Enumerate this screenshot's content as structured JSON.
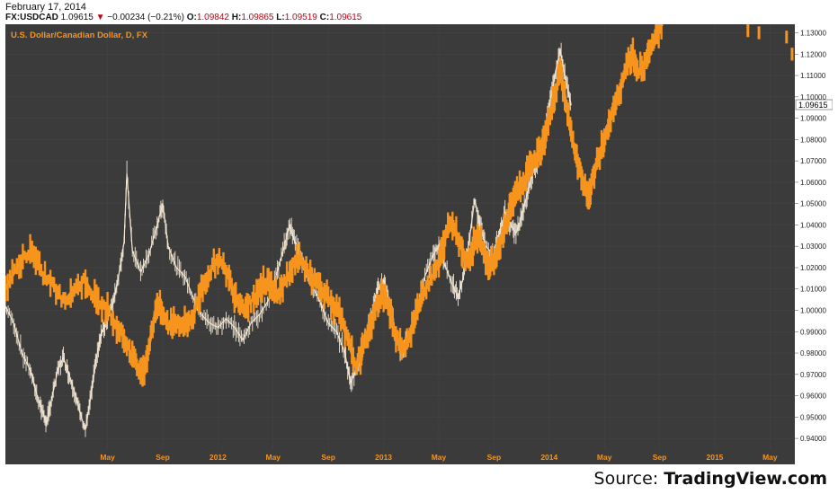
{
  "header": {
    "date": "February 17, 2014",
    "symbol": "FX:USDCAD",
    "last": "1.09615",
    "change": "−0.00234 (−0.21%)",
    "open_label": "O:",
    "open": "1.09842",
    "high_label": "H:",
    "high": "1.09865",
    "low_label": "L:",
    "low": "1.09519",
    "close_label": "C:",
    "close": "1.09615"
  },
  "source": {
    "prefix": "Source: ",
    "name": "TradingView.com"
  },
  "colors": {
    "background": "#3b3b3b",
    "primary": "#f7941d",
    "overlay": "#f3e6d2",
    "price_tag": "#ffffff"
  },
  "chart_data": {
    "type": "line",
    "title": "U.S. Dollar/Canadian Dollar, D, FX",
    "ylim": [
      0.935,
      1.134
    ],
    "y_ticks": [
      0.94,
      0.95,
      0.96,
      0.97,
      0.98,
      0.99,
      1.0,
      1.01,
      1.02,
      1.03,
      1.04,
      1.05,
      1.06,
      1.07,
      1.08,
      1.09,
      1.1,
      1.11,
      1.12,
      1.13
    ],
    "y_tick_labels": [
      "0.94000",
      "0.95000",
      "0.96000",
      "0.97000",
      "0.98000",
      "0.99000",
      "1.00000",
      "1.01000",
      "1.02000",
      "1.03000",
      "1.04000",
      "1.05000",
      "1.06000",
      "1.07000",
      "1.08000",
      "1.09000",
      "1.10000",
      "1.11000",
      "1.12000",
      "1.13000"
    ],
    "current_price": 1.09615,
    "current_price_label": "1.09615",
    "x_ticks": [
      {
        "label": "May",
        "x": 1.0
      },
      {
        "label": "Sep",
        "x": 2.0
      },
      {
        "label": "2012",
        "x": 3.0
      },
      {
        "label": "May",
        "x": 4.0
      },
      {
        "label": "Sep",
        "x": 5.0
      },
      {
        "label": "2013",
        "x": 6.0
      },
      {
        "label": "May",
        "x": 7.0
      },
      {
        "label": "Sep",
        "x": 8.0
      },
      {
        "label": "2014",
        "x": 9.0
      },
      {
        "label": "May",
        "x": 10.0
      },
      {
        "label": "Sep",
        "x": 11.0
      },
      {
        "label": "2015",
        "x": 12.0
      },
      {
        "label": "May",
        "x": 13.0
      }
    ],
    "xlim": [
      -0.85,
      13.45
    ],
    "series": [
      {
        "values": [
          [
            -0.85,
            1.01
          ],
          [
            -0.6,
            1.022
          ],
          [
            -0.4,
            1.028
          ],
          [
            -0.2,
            1.018
          ],
          [
            0.0,
            1.012
          ],
          [
            0.2,
            1.004
          ],
          [
            0.4,
            1.01
          ],
          [
            0.6,
            1.014
          ],
          [
            0.8,
            1.004
          ],
          [
            1.0,
            1.0
          ],
          [
            1.2,
            0.992
          ],
          [
            1.35,
            0.984
          ],
          [
            1.5,
            0.976
          ],
          [
            1.6,
            0.97
          ],
          [
            1.7,
            0.976
          ],
          [
            1.8,
            0.99
          ],
          [
            1.9,
            1.004
          ],
          [
            2.0,
            0.998
          ],
          [
            2.1,
            0.993
          ],
          [
            2.25,
            0.995
          ],
          [
            2.4,
            0.993
          ],
          [
            2.55,
            0.997
          ],
          [
            2.7,
            1.01
          ],
          [
            2.85,
            1.018
          ],
          [
            3.0,
            1.024
          ],
          [
            3.15,
            1.018
          ],
          [
            3.3,
            1.008
          ],
          [
            3.45,
            1.002
          ],
          [
            3.6,
            1.004
          ],
          [
            3.75,
            1.01
          ],
          [
            3.9,
            1.014
          ],
          [
            4.0,
            1.008
          ],
          [
            4.15,
            1.01
          ],
          [
            4.3,
            1.018
          ],
          [
            4.45,
            1.024
          ],
          [
            4.6,
            1.02
          ],
          [
            4.75,
            1.014
          ],
          [
            4.9,
            1.01
          ],
          [
            5.05,
            1.004
          ],
          [
            5.2,
            0.998
          ],
          [
            5.35,
            0.986
          ],
          [
            5.5,
            0.974
          ],
          [
            5.6,
            0.98
          ],
          [
            5.7,
            0.988
          ],
          [
            5.8,
            0.996
          ],
          [
            5.9,
            1.004
          ],
          [
            6.0,
            1.008
          ],
          [
            6.1,
            1.0
          ],
          [
            6.2,
            0.99
          ],
          [
            6.35,
            0.982
          ],
          [
            6.5,
            0.99
          ],
          [
            6.6,
            1.0
          ],
          [
            6.7,
            1.008
          ],
          [
            6.85,
            1.014
          ],
          [
            7.0,
            1.022
          ],
          [
            7.1,
            1.032
          ],
          [
            7.2,
            1.042
          ],
          [
            7.3,
            1.038
          ],
          [
            7.4,
            1.03
          ],
          [
            7.5,
            1.022
          ],
          [
            7.6,
            1.028
          ],
          [
            7.7,
            1.036
          ],
          [
            7.8,
            1.03
          ],
          [
            7.9,
            1.02
          ],
          [
            8.0,
            1.024
          ],
          [
            8.1,
            1.03
          ],
          [
            8.2,
            1.038
          ],
          [
            8.3,
            1.048
          ],
          [
            8.4,
            1.056
          ],
          [
            8.5,
            1.058
          ],
          [
            8.6,
            1.064
          ],
          [
            8.7,
            1.07
          ],
          [
            8.8,
            1.072
          ],
          [
            8.9,
            1.08
          ],
          [
            9.0,
            1.09
          ],
          [
            9.1,
            1.1
          ],
          [
            9.2,
            1.112
          ],
          [
            9.3,
            1.098
          ],
          [
            9.4,
            1.082
          ],
          [
            9.5,
            1.07
          ],
          [
            9.6,
            1.062
          ],
          [
            9.7,
            1.052
          ],
          [
            9.8,
            1.062
          ],
          [
            9.9,
            1.072
          ],
          [
            10.0,
            1.08
          ],
          [
            10.1,
            1.088
          ],
          [
            10.2,
            1.096
          ],
          [
            10.3,
            1.104
          ],
          [
            10.4,
            1.114
          ],
          [
            10.5,
            1.12
          ],
          [
            10.6,
            1.112
          ],
          [
            10.75,
            1.116
          ],
          [
            10.85,
            1.124
          ],
          [
            10.95,
            1.13
          ],
          [
            11.05,
            1.134
          ]
        ]
      },
      {
        "values": [
          [
            -0.85,
            1.002
          ],
          [
            -0.7,
            0.994
          ],
          [
            -0.55,
            0.98
          ],
          [
            -0.4,
            0.972
          ],
          [
            -0.3,
            0.962
          ],
          [
            -0.2,
            0.954
          ],
          [
            -0.1,
            0.947
          ],
          [
            0.0,
            0.96
          ],
          [
            0.1,
            0.972
          ],
          [
            0.2,
            0.978
          ],
          [
            0.3,
            0.97
          ],
          [
            0.4,
            0.962
          ],
          [
            0.5,
            0.952
          ],
          [
            0.6,
            0.944
          ],
          [
            0.7,
            0.96
          ],
          [
            0.8,
            0.978
          ],
          [
            0.9,
            0.99
          ],
          [
            1.0,
            0.996
          ],
          [
            1.1,
            1.004
          ],
          [
            1.2,
            1.016
          ],
          [
            1.3,
            1.032
          ],
          [
            1.35,
            1.064
          ],
          [
            1.45,
            1.028
          ],
          [
            1.6,
            1.018
          ],
          [
            1.75,
            1.026
          ],
          [
            1.9,
            1.04
          ],
          [
            2.0,
            1.05
          ],
          [
            2.1,
            1.03
          ],
          [
            2.25,
            1.02
          ],
          [
            2.4,
            1.016
          ],
          [
            2.55,
            1.006
          ],
          [
            2.7,
            0.998
          ],
          [
            2.85,
            0.994
          ],
          [
            3.0,
            0.992
          ],
          [
            3.15,
            0.996
          ],
          [
            3.3,
            0.992
          ],
          [
            3.45,
            0.986
          ],
          [
            3.6,
            0.994
          ],
          [
            3.75,
            0.998
          ],
          [
            3.9,
            1.004
          ],
          [
            4.05,
            1.016
          ],
          [
            4.2,
            1.03
          ],
          [
            4.3,
            1.04
          ],
          [
            4.4,
            1.032
          ],
          [
            4.55,
            1.022
          ],
          [
            4.7,
            1.012
          ],
          [
            4.85,
            1.004
          ],
          [
            5.0,
            0.994
          ],
          [
            5.15,
            0.99
          ],
          [
            5.3,
            0.98
          ],
          [
            5.4,
            0.966
          ],
          [
            5.5,
            0.972
          ],
          [
            5.6,
            0.98
          ],
          [
            5.7,
            0.99
          ],
          [
            5.8,
            1.0
          ],
          [
            5.9,
            1.01
          ],
          [
            6.0,
            1.014
          ],
          [
            6.1,
            1.004
          ],
          [
            6.2,
            0.99
          ],
          [
            6.3,
            0.982
          ],
          [
            6.45,
            0.986
          ],
          [
            6.6,
            1.0
          ],
          [
            6.75,
            1.016
          ],
          [
            6.9,
            1.026
          ],
          [
            7.0,
            1.03
          ],
          [
            7.1,
            1.022
          ],
          [
            7.25,
            1.012
          ],
          [
            7.35,
            1.006
          ],
          [
            7.45,
            1.016
          ],
          [
            7.55,
            1.032
          ],
          [
            7.65,
            1.052
          ],
          [
            7.75,
            1.04
          ],
          [
            7.85,
            1.03
          ],
          [
            8.0,
            1.026
          ],
          [
            8.1,
            1.036
          ],
          [
            8.2,
            1.046
          ],
          [
            8.3,
            1.04
          ],
          [
            8.4,
            1.036
          ],
          [
            8.5,
            1.044
          ],
          [
            8.6,
            1.054
          ],
          [
            8.7,
            1.064
          ],
          [
            8.8,
            1.07
          ],
          [
            8.9,
            1.08
          ],
          [
            9.0,
            1.096
          ],
          [
            9.1,
            1.11
          ],
          [
            9.2,
            1.122
          ],
          [
            9.3,
            1.108
          ],
          [
            9.4,
            1.096
          ]
        ]
      }
    ]
  }
}
